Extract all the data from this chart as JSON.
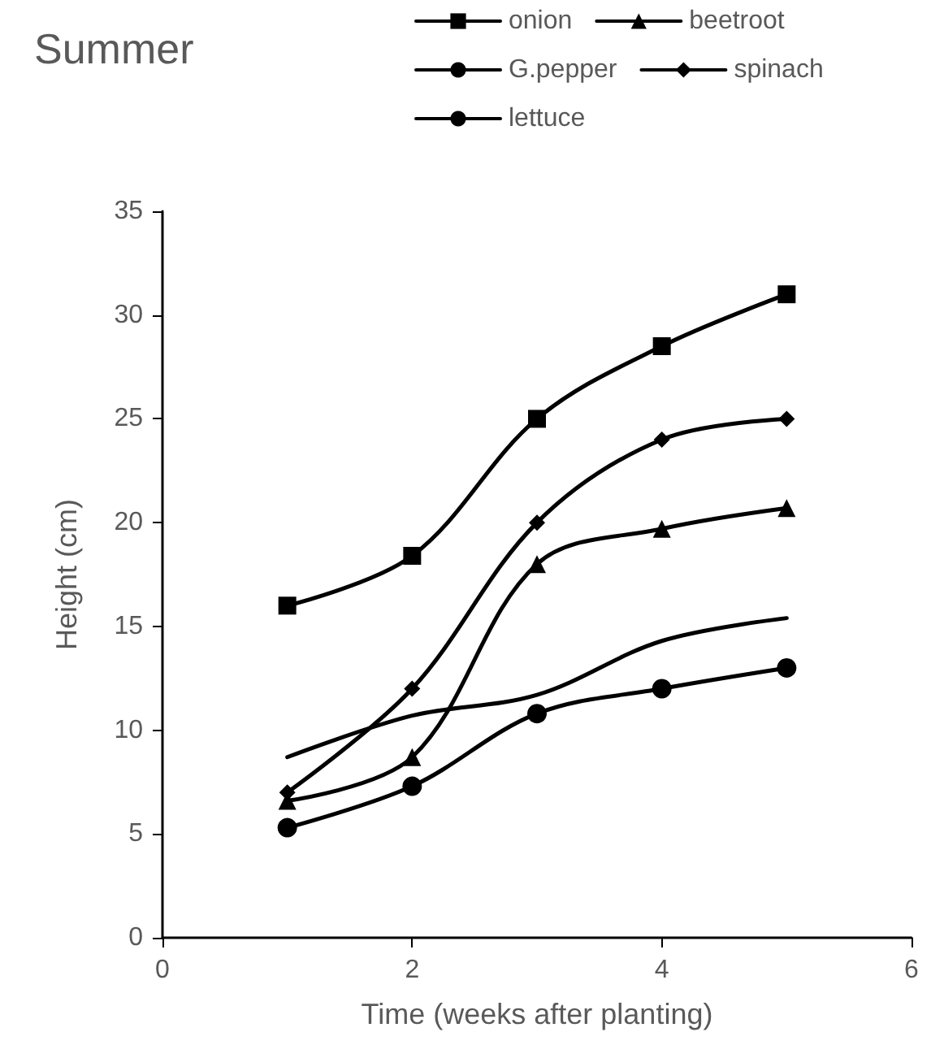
{
  "chart_data": {
    "type": "line",
    "title": "Summer",
    "xlabel": "Time (weeks after planting)",
    "ylabel": "Height (cm)",
    "x": [
      1,
      2,
      3,
      4,
      5
    ],
    "series": [
      {
        "name": "onion",
        "color": "#000000",
        "marker": "square",
        "values": [
          16,
          18.4,
          25,
          28.5,
          31
        ]
      },
      {
        "name": "beetroot",
        "color": "#000000",
        "marker": "triangle",
        "values": [
          6.6,
          8.7,
          18,
          19.7,
          20.7
        ]
      },
      {
        "name": "G.pepper",
        "color": "#000000",
        "marker": "none",
        "values": [
          8.7,
          10.7,
          11.7,
          14.3,
          15.4
        ]
      },
      {
        "name": "spinach",
        "color": "#000000",
        "marker": "diamond",
        "values": [
          7,
          12,
          20,
          24,
          25
        ]
      },
      {
        "name": "lettuce",
        "color": "#000000",
        "marker": "circle",
        "values": [
          5.3,
          7.3,
          10.8,
          12,
          13
        ]
      }
    ],
    "xlim": [
      0,
      6
    ],
    "xticks": [
      0,
      2,
      4,
      6
    ],
    "ylim": [
      0,
      35
    ],
    "yticks": [
      0,
      5,
      10,
      15,
      20,
      25,
      30,
      35
    ],
    "grid": false,
    "legend": "top",
    "line_style": "solid"
  }
}
